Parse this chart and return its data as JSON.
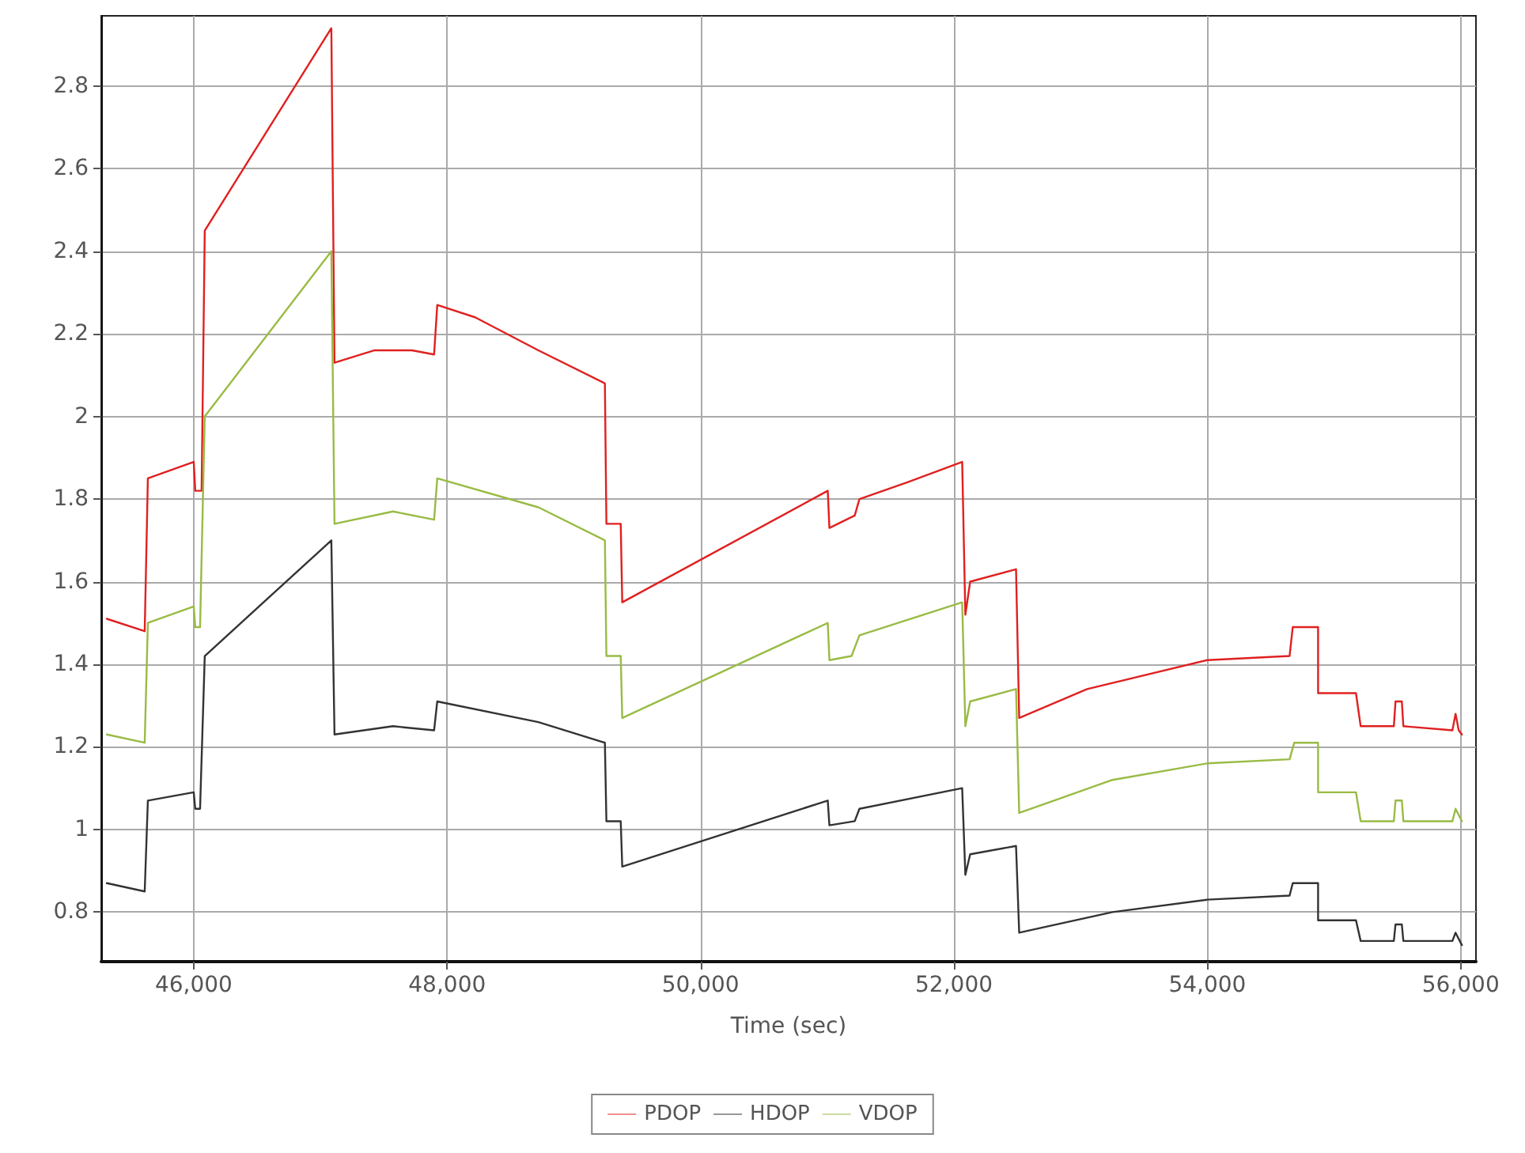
{
  "chart_data": {
    "type": "line",
    "xlabel": "Time (sec)",
    "xlim": [
      45270,
      56120
    ],
    "ylim": [
      0.68,
      2.97
    ],
    "xticks": [
      {
        "value": 46000,
        "label": "46,000"
      },
      {
        "value": 48000,
        "label": "48,000"
      },
      {
        "value": 50000,
        "label": "50,000"
      },
      {
        "value": 52000,
        "label": "52,000"
      },
      {
        "value": 54000,
        "label": "54,000"
      },
      {
        "value": 56000,
        "label": "56,000"
      }
    ],
    "yticks": [
      0.8,
      1,
      1.2,
      1.4,
      1.6,
      1.8,
      2,
      2.2,
      2.4,
      2.6,
      2.8
    ],
    "grid": true,
    "legend": "bottom",
    "marker": "none",
    "line_style": "solid",
    "series": [
      {
        "name": "PDOP",
        "color": "#e02020",
        "x": [
          45314,
          45613,
          45638,
          46000,
          46012,
          46062,
          46087,
          47086,
          47111,
          47423,
          47722,
          47897,
          47922,
          48221,
          48720,
          49245,
          49257,
          49370,
          49382,
          51004,
          51017,
          51217,
          51254,
          51628,
          52065,
          52090,
          52128,
          52490,
          52515,
          53051,
          54000,
          54649,
          54674,
          54874,
          54874,
          55173,
          55210,
          55472,
          55485,
          55535,
          55547,
          55934,
          55959,
          55984,
          56009
        ],
        "values": [
          1.51,
          1.48,
          1.85,
          1.89,
          1.82,
          1.82,
          2.45,
          2.94,
          2.13,
          2.16,
          2.16,
          2.15,
          2.27,
          2.24,
          2.16,
          2.08,
          1.74,
          1.74,
          1.55,
          1.82,
          1.73,
          1.76,
          1.8,
          1.84,
          1.89,
          1.52,
          1.6,
          1.63,
          1.27,
          1.34,
          1.41,
          1.42,
          1.49,
          1.49,
          1.33,
          1.33,
          1.25,
          1.25,
          1.31,
          1.31,
          1.25,
          1.24,
          1.28,
          1.24,
          1.23
        ]
      },
      {
        "name": "HDOP",
        "color": "#333333",
        "x": [
          45314,
          45613,
          45638,
          46000,
          46012,
          46050,
          46087,
          47086,
          47111,
          47573,
          47897,
          47922,
          48720,
          49245,
          49257,
          49370,
          49382,
          51004,
          51017,
          51217,
          51254,
          52065,
          52090,
          52128,
          52490,
          52515,
          53251,
          54000,
          54649,
          54674,
          54874,
          54874,
          55173,
          55210,
          55472,
          55485,
          55535,
          55547,
          55934,
          55959,
          56009
        ],
        "values": [
          0.87,
          0.85,
          1.07,
          1.09,
          1.05,
          1.05,
          1.42,
          1.7,
          1.23,
          1.25,
          1.24,
          1.31,
          1.26,
          1.21,
          1.02,
          1.02,
          0.91,
          1.07,
          1.01,
          1.02,
          1.05,
          1.1,
          0.89,
          0.94,
          0.96,
          0.75,
          0.8,
          0.83,
          0.84,
          0.87,
          0.87,
          0.78,
          0.78,
          0.73,
          0.73,
          0.77,
          0.77,
          0.73,
          0.73,
          0.75,
          0.72
        ]
      },
      {
        "name": "VDOP",
        "color": "#99bb44",
        "x": [
          45314,
          45613,
          45638,
          46000,
          46012,
          46050,
          46087,
          47086,
          47111,
          47573,
          47897,
          47922,
          48720,
          49245,
          49257,
          49370,
          49382,
          51004,
          51017,
          51192,
          51254,
          52065,
          52090,
          52128,
          52490,
          52515,
          53251,
          54000,
          54649,
          54686,
          54874,
          54874,
          55173,
          55210,
          55472,
          55485,
          55535,
          55547,
          55934,
          55959,
          56009
        ],
        "values": [
          1.23,
          1.21,
          1.5,
          1.54,
          1.49,
          1.49,
          2,
          2.4,
          1.74,
          1.77,
          1.75,
          1.85,
          1.78,
          1.7,
          1.42,
          1.42,
          1.27,
          1.5,
          1.41,
          1.42,
          1.47,
          1.55,
          1.25,
          1.31,
          1.34,
          1.04,
          1.12,
          1.16,
          1.17,
          1.21,
          1.21,
          1.09,
          1.09,
          1.02,
          1.02,
          1.07,
          1.07,
          1.02,
          1.02,
          1.05,
          1.02
        ]
      }
    ]
  }
}
